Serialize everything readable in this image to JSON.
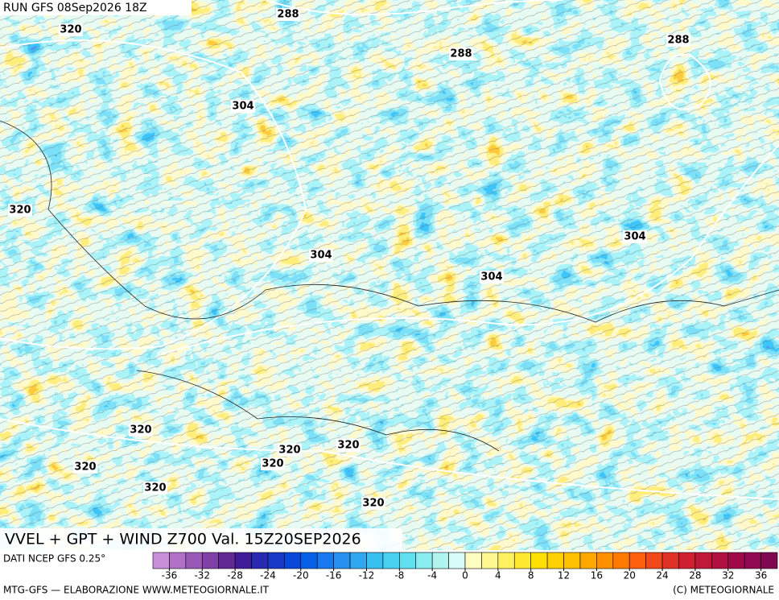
{
  "header": {
    "run": "RUN GFS 08Sep2026 18Z"
  },
  "map": {
    "contour_labels": [
      "288",
      "320",
      "288",
      "288",
      "304",
      "320",
      "304",
      "304",
      "304",
      "320",
      "320",
      "320",
      "320",
      "320",
      "320",
      "320"
    ],
    "title": "VVEL + GPT + WIND Z700 Val. 15Z20SEP2026"
  },
  "legend": {
    "source": "DATI NCEP GFS 0.25°",
    "range": [
      -38,
      38
    ],
    "ticks": [
      -36,
      -32,
      -28,
      -24,
      -20,
      -16,
      -12,
      -8,
      -4,
      0,
      4,
      8,
      12,
      16,
      20,
      24,
      28,
      32,
      36
    ],
    "colors": [
      "#c890d8",
      "#b070c8",
      "#9858b8",
      "#8040a8",
      "#602890",
      "#401c98",
      "#2828b0",
      "#1838c8",
      "#0848d8",
      "#0860e8",
      "#1878f0",
      "#2890f0",
      "#30a8f0",
      "#38c0f0",
      "#48d0f0",
      "#60e0f0",
      "#88ecf0",
      "#b0f4f0",
      "#d8fcf8",
      "#fffcc0",
      "#fff890",
      "#fff060",
      "#ffe830",
      "#ffe000",
      "#ffd000",
      "#ffc000",
      "#ffa800",
      "#ff9000",
      "#ff7800",
      "#ff6010",
      "#f04818",
      "#e03028",
      "#d02030",
      "#c01838",
      "#b01040",
      "#a00848",
      "#900850",
      "#800850"
    ]
  },
  "footer": {
    "left": "MTG-GFS — ELABORAZIONE WWW.METEOGIORNALE.IT",
    "right": "(C) METEOGIORNALE"
  }
}
